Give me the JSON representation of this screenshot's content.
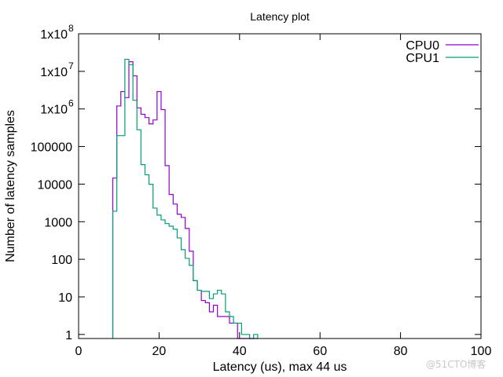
{
  "chart_data": {
    "type": "line",
    "style": "steps",
    "title": "Latency plot",
    "xlabel": "Latency (us), max 44 us",
    "ylabel": "Number of latency samples",
    "xlim": [
      0,
      100
    ],
    "ylim": [
      0.78,
      100000000
    ],
    "yscale": "log",
    "grid": false,
    "legend": "top-right",
    "xticks": [
      "0",
      "20",
      "40",
      "60",
      "80",
      "100"
    ],
    "xtick_values": [
      0,
      20,
      40,
      60,
      80,
      100
    ],
    "yticks": [
      {
        "value": 1,
        "label": "1"
      },
      {
        "value": 10,
        "label": "10"
      },
      {
        "value": 100,
        "label": "100"
      },
      {
        "value": 1000,
        "label": "1000"
      },
      {
        "value": 10000,
        "label": "10000"
      },
      {
        "value": 100000,
        "label": "100000"
      },
      {
        "value": 1000000,
        "label": "1x10",
        "exp": "6"
      },
      {
        "value": 10000000,
        "label": "1x10",
        "exp": "7"
      },
      {
        "value": 100000000,
        "label": "1x10",
        "exp": "8"
      }
    ],
    "x": [
      9,
      10,
      11,
      12,
      13,
      14,
      15,
      16,
      17,
      18,
      19,
      20,
      21,
      22,
      23,
      24,
      25,
      26,
      27,
      28,
      29,
      30,
      31,
      32,
      33,
      34,
      35,
      36,
      37,
      38,
      39,
      40,
      41,
      42,
      43,
      44
    ],
    "series": [
      {
        "name": "CPU0",
        "color": "#9400d3",
        "values": [
          14500,
          1200000,
          2900000,
          2000000,
          18000000,
          7600000,
          1070000,
          720000,
          590000,
          400000,
          510000,
          2900000,
          960000,
          31000,
          5300,
          2950,
          1580,
          1300,
          660,
          164,
          27,
          15,
          8,
          7,
          4,
          6,
          3,
          3,
          3,
          2,
          2,
          0,
          0,
          0,
          0,
          0
        ]
      },
      {
        "name": "CPU1",
        "color": "#009e73",
        "values": [
          1900,
          195000,
          195000,
          21000000,
          15000000,
          1700000,
          280000,
          33000,
          17700,
          9900,
          2300,
          1500,
          1120,
          890,
          760,
          630,
          370,
          180,
          106,
          69,
          27,
          15,
          14,
          14,
          9,
          12,
          15,
          12,
          4,
          3,
          2,
          2,
          1,
          1,
          0,
          1
        ]
      }
    ]
  },
  "watermark": "@51CTO博客"
}
